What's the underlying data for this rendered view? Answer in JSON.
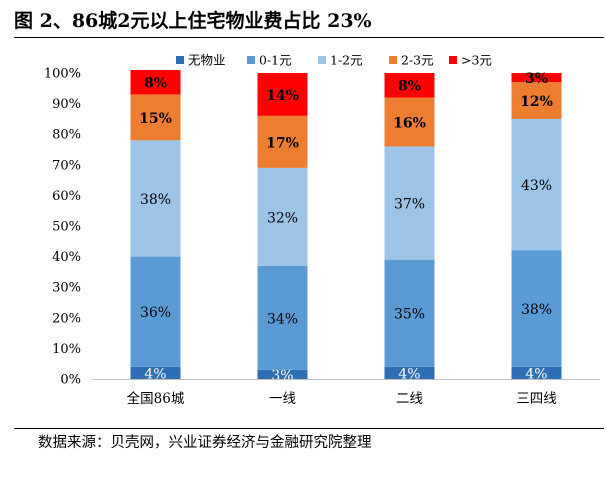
{
  "figure_title": "图 2、86城2元以上住宅物业费占比 23%",
  "source_note": "数据来源：贝壳网，兴业证券经济与金融研究院整理",
  "chart_data": {
    "type": "bar",
    "stacked": true,
    "categories": [
      "全国86城",
      "一线",
      "二线",
      "三四线"
    ],
    "series": [
      {
        "name": "无物业",
        "color": "#2E6EB5",
        "values": [
          4,
          3,
          4,
          4
        ],
        "labels": [
          "4%",
          "3%",
          "4%",
          "4%"
        ]
      },
      {
        "name": "0-1元",
        "color": "#5B9BD5",
        "values": [
          36,
          34,
          35,
          38
        ],
        "labels": [
          "36%",
          "34%",
          "35%",
          "38%"
        ]
      },
      {
        "name": "1-2元",
        "color": "#9DC3E6",
        "values": [
          38,
          32,
          37,
          43
        ],
        "labels": [
          "38%",
          "32%",
          "37%",
          "43%"
        ]
      },
      {
        "name": "2-3元",
        "color": "#ED7D31",
        "values": [
          15,
          17,
          16,
          12
        ],
        "labels": [
          "15%",
          "17%",
          "16%",
          "12%"
        ]
      },
      {
        "name": ">3元",
        "color": "#FF0000",
        "values": [
          8,
          14,
          8,
          3
        ],
        "labels": [
          "8%",
          "14%",
          "8%",
          "3%"
        ]
      }
    ],
    "ylim": [
      0,
      100
    ],
    "yticks": [
      "0%",
      "10%",
      "20%",
      "30%",
      "40%",
      "50%",
      "60%",
      "70%",
      "80%",
      "90%",
      "100%"
    ],
    "legend_position": "top",
    "grid": false
  }
}
